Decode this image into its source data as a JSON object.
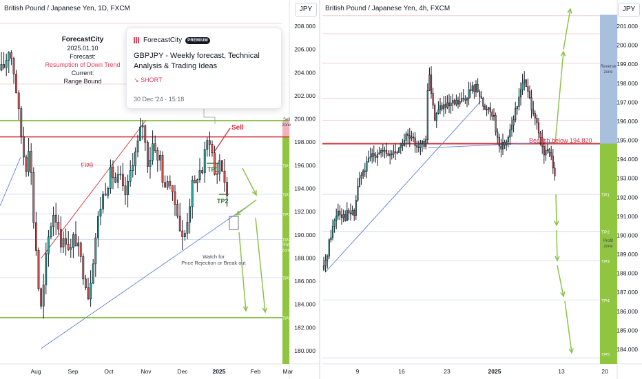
{
  "left_panel": {
    "title": "British Pound / Japanese Yen, 1D, FXCM",
    "currency": "JPY",
    "forecast_box": {
      "brand": "ForecastCity",
      "date": "2025.01.10",
      "forecast_label": "Forecast:",
      "forecast_value": "Resumption of Down Trend",
      "current_label": "Current:",
      "current_value": "Range Bound"
    },
    "idea_card": {
      "author": "ForecastCity",
      "badge": "PREMIUM",
      "title": "GBPJPY - Weekly forecast, Technical Analysis & Trading Ideas",
      "direction": "SHORT",
      "direction_icon": "trend-down-icon",
      "timestamp": "30 Dec '24 · 15:18"
    },
    "annotations": {
      "sell": "Sell",
      "flag": "Flag",
      "tp1": "TP1",
      "tp2": "TP2",
      "watch": [
        "Watch for",
        "Price Rejection or Break out"
      ]
    },
    "zones": {
      "sell_zone": [
        "Sell",
        "zone"
      ],
      "profit_zone": [
        "Profit",
        "zone"
      ],
      "tp_labels": [
        "TP1",
        "TP2",
        "TP3",
        "TP4",
        "TP5",
        "TP6"
      ]
    }
  },
  "right_panel": {
    "title": "British Pound / Japanese Yen, 4h, FXCM",
    "currency": "JPY",
    "annotations": {
      "bearish": "Bearish below 194.820"
    },
    "zones": {
      "reverse_zone": [
        "Reverse",
        "zone"
      ],
      "profit_zone": [
        "Profit",
        "zone"
      ],
      "tp_labels": [
        "TP1",
        "TP2",
        "TP3",
        "TP4",
        "TP5"
      ]
    }
  },
  "chart_data": [
    {
      "type": "candlestick",
      "symbol": "GBPJPY",
      "timeframe": "1D",
      "x_ticks": [
        "Aug",
        "Sep",
        "Oct",
        "Nov",
        "Dec",
        "2025",
        "Feb",
        "Mar"
      ],
      "y_ticks": [
        "208.000",
        "206.000",
        "204.000",
        "202.000",
        "200.000",
        "198.000",
        "196.000",
        "194.000",
        "192.000",
        "190.000",
        "188.000",
        "186.000",
        "184.000",
        "182.000",
        "180.000"
      ],
      "ylim": [
        179.0,
        209.0
      ],
      "close_path": [
        [
          0,
          204.0
        ],
        [
          8,
          204.8
        ],
        [
          12,
          206.2
        ],
        [
          16,
          205.5
        ],
        [
          22,
          203.5
        ],
        [
          26,
          201.0
        ],
        [
          30,
          199.0
        ],
        [
          34,
          197.0
        ],
        [
          38,
          196.0
        ],
        [
          42,
          198.0
        ],
        [
          46,
          194.5
        ],
        [
          50,
          190.0
        ],
        [
          54,
          188.0
        ],
        [
          58,
          183.0
        ],
        [
          62,
          184.5
        ],
        [
          66,
          187.5
        ],
        [
          72,
          190.5
        ],
        [
          78,
          192.0
        ],
        [
          84,
          191.0
        ],
        [
          90,
          189.0
        ],
        [
          96,
          189.8
        ],
        [
          102,
          188.5
        ],
        [
          108,
          190.0
        ],
        [
          114,
          188.6
        ],
        [
          120,
          187.0
        ],
        [
          124,
          186.2
        ],
        [
          128,
          184.8
        ],
        [
          132,
          186.5
        ],
        [
          138,
          189.5
        ],
        [
          144,
          192.0
        ],
        [
          150,
          193.5
        ],
        [
          156,
          194.5
        ],
        [
          162,
          195.5
        ],
        [
          168,
          194.5
        ],
        [
          174,
          195.0
        ],
        [
          180,
          193.2
        ],
        [
          186,
          194.2
        ],
        [
          192,
          196.5
        ],
        [
          198,
          197.2
        ],
        [
          204,
          199.0
        ],
        [
          208,
          199.8
        ],
        [
          212,
          197.0
        ],
        [
          216,
          196.0
        ],
        [
          220,
          197.5
        ],
        [
          224,
          198.5
        ],
        [
          228,
          196.0
        ],
        [
          232,
          197.0
        ],
        [
          236,
          195.0
        ],
        [
          240,
          193.5
        ],
        [
          244,
          195.5
        ],
        [
          248,
          194.0
        ],
        [
          252,
          192.5
        ],
        [
          256,
          193.0
        ],
        [
          260,
          191.0
        ],
        [
          264,
          189.5
        ],
        [
          268,
          190.0
        ],
        [
          272,
          191.5
        ],
        [
          276,
          193.0
        ],
        [
          280,
          194.5
        ],
        [
          284,
          194.0
        ],
        [
          288,
          196.0
        ],
        [
          292,
          195.0
        ],
        [
          296,
          196.5
        ],
        [
          300,
          197.8
        ],
        [
          304,
          198.5
        ],
        [
          308,
          197.0
        ],
        [
          312,
          195.0
        ],
        [
          316,
          195.6
        ],
        [
          320,
          196.8
        ],
        [
          324,
          195.0
        ],
        [
          328,
          194.5
        ],
        [
          330,
          192.5
        ],
        [
          333,
          193.0
        ]
      ],
      "sell_line": 198.45,
      "resistance_line": 199.85,
      "support_line": 182.85,
      "tp_lines": [
        196.0,
        193.5,
        191.8,
        189.6,
        186.3,
        182.85
      ],
      "series": [
        {
          "name": "Flag",
          "x": [
            60,
            212
          ],
          "y": [
            188.0,
            199.9
          ]
        },
        {
          "x": [
            60,
            372
          ],
          "y": [
            180.2,
            193.0
          ]
        },
        {
          "x": [
            0,
            30
          ],
          "y": [
            192.5,
            196.7
          ]
        }
      ]
    },
    {
      "type": "candlestick",
      "symbol": "GBPJPY",
      "timeframe": "4h",
      "x_ticks": [
        "9",
        "16",
        "23",
        "2025",
        "13",
        "20"
      ],
      "y_ticks": [
        "201.000",
        "200.000",
        "199.000",
        "198.000",
        "197.000",
        "196.000",
        "195.000",
        "194.000",
        "193.000",
        "192.000",
        "191.000",
        "190.000",
        "189.000",
        "188.000",
        "187.000",
        "186.000",
        "185.000",
        "184.000"
      ],
      "ylim": [
        183.55,
        201.6
      ],
      "close_path": [
        [
          470,
          188.2
        ],
        [
          480,
          190.0
        ],
        [
          490,
          191.4
        ],
        [
          500,
          191.0
        ],
        [
          508,
          191.2
        ],
        [
          514,
          191.0
        ],
        [
          520,
          192.8
        ],
        [
          530,
          193.5
        ],
        [
          540,
          194.2
        ],
        [
          550,
          194.5
        ],
        [
          560,
          194.2
        ],
        [
          570,
          194.3
        ],
        [
          580,
          194.6
        ],
        [
          590,
          195.2
        ],
        [
          600,
          194.9
        ],
        [
          610,
          194.8
        ],
        [
          618,
          194.6
        ],
        [
          622,
          199.0
        ],
        [
          626,
          197.5
        ],
        [
          630,
          196.2
        ],
        [
          640,
          196.8
        ],
        [
          650,
          196.7
        ],
        [
          660,
          196.9
        ],
        [
          670,
          197.0
        ],
        [
          680,
          197.5
        ],
        [
          690,
          197.8
        ],
        [
          698,
          197.5
        ],
        [
          702,
          196.5
        ],
        [
          710,
          196.8
        ],
        [
          718,
          196.2
        ],
        [
          722,
          195.0
        ],
        [
          726,
          194.6
        ],
        [
          734,
          194.9
        ],
        [
          742,
          195.8
        ],
        [
          750,
          196.6
        ],
        [
          758,
          198.2
        ],
        [
          764,
          197.8
        ],
        [
          770,
          197.0
        ],
        [
          776,
          196.5
        ],
        [
          780,
          195.5
        ],
        [
          786,
          194.8
        ],
        [
          790,
          194.0
        ],
        [
          794,
          194.7
        ],
        [
          798,
          194.2
        ],
        [
          802,
          193.8
        ],
        [
          806,
          193.0
        ]
      ],
      "bearish_line": 194.82,
      "tp_lines": [
        192.15,
        190.2,
        188.65,
        186.6,
        183.55
      ],
      "grid_lines": [
        201.55,
        200.6,
        199.05,
        197.2,
        196.05,
        194.82
      ],
      "series": [
        {
          "x": [
            472,
            698
          ],
          "y": [
            188.05,
            197.05
          ]
        },
        {
          "x": [
            622,
            806
          ],
          "y": [
            194.6,
            194.9
          ]
        }
      ],
      "right_zones": [
        {
          "name": "Reverse zone",
          "from": 194.82,
          "to": 201.6
        },
        {
          "name": "Profit zone",
          "from": 183.55,
          "to": 194.82
        }
      ]
    }
  ],
  "colors": {
    "up": "#26a69a",
    "down": "#ef5350",
    "candle": "#131722",
    "sell_line": "#d32f3b",
    "green_line": "#8bc34a",
    "trend_line": "#5b7ed6",
    "grid": "#f1c5cb",
    "reverse_zone": "#a9bfde",
    "profit_zone": "#8fc53f",
    "sell_zone": "#f6b2bb",
    "tp_text": "#ffffff"
  }
}
